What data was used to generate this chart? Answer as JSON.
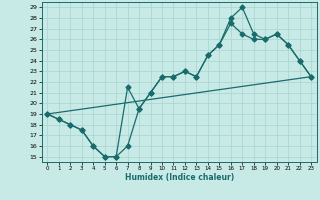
{
  "xlabel": "Humidex (Indice chaleur)",
  "xlim": [
    -0.5,
    23.5
  ],
  "ylim": [
    14.5,
    29.5
  ],
  "xticks": [
    0,
    1,
    2,
    3,
    4,
    5,
    6,
    7,
    8,
    9,
    10,
    11,
    12,
    13,
    14,
    15,
    16,
    17,
    18,
    19,
    20,
    21,
    22,
    23
  ],
  "yticks": [
    15,
    16,
    17,
    18,
    19,
    20,
    21,
    22,
    23,
    24,
    25,
    26,
    27,
    28,
    29
  ],
  "bg_color": "#c8eae6",
  "grid_color": "#a8d4cf",
  "line_color": "#1a6b6b",
  "line1_x": [
    0,
    1,
    2,
    3,
    4,
    5,
    6,
    7,
    8,
    9,
    10,
    11,
    12,
    13,
    14,
    15,
    16,
    17,
    18,
    19,
    20,
    21,
    22,
    23
  ],
  "line1_y": [
    19.0,
    18.5,
    18.0,
    17.5,
    16.0,
    15.0,
    15.0,
    16.0,
    19.5,
    21.0,
    22.5,
    22.5,
    23.0,
    22.5,
    24.5,
    25.5,
    27.5,
    26.5,
    26.0,
    26.0,
    26.5,
    25.5,
    24.0,
    22.5
  ],
  "line2_x": [
    0,
    1,
    2,
    3,
    4,
    5,
    6,
    7,
    8,
    9,
    10,
    11,
    12,
    13,
    14,
    15,
    16,
    17,
    18,
    19,
    20,
    21,
    22,
    23
  ],
  "line2_y": [
    19.0,
    18.5,
    18.0,
    17.5,
    16.0,
    15.0,
    15.0,
    21.5,
    19.5,
    21.0,
    22.5,
    22.5,
    23.0,
    22.5,
    24.5,
    25.5,
    28.0,
    29.0,
    26.5,
    26.0,
    26.5,
    25.5,
    24.0,
    22.5
  ],
  "line3_x": [
    0,
    23
  ],
  "line3_y": [
    19.0,
    22.5
  ],
  "markersize": 2.5,
  "linewidth": 0.9
}
